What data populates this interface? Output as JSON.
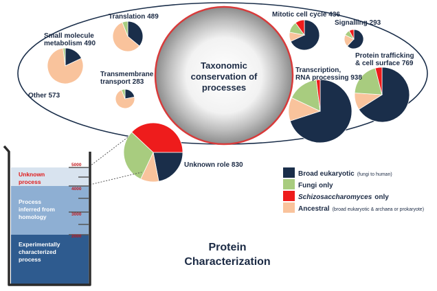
{
  "center": {
    "title_line1": "Taxonomic",
    "title_line2": "conservation of",
    "title_line3": "processes"
  },
  "categories": [
    {
      "key": "broad",
      "name": "Broad eukaryotic",
      "note": "(fungi to human)",
      "color": "#1a2e4a"
    },
    {
      "key": "fungi",
      "name": "Fungi only",
      "note": "",
      "color": "#a8cc7f"
    },
    {
      "key": "schizo",
      "name": "Schizosaccharomyces",
      "name_suffix": "only",
      "note": "",
      "color": "#ee1c1c"
    },
    {
      "key": "ancestral",
      "name": "Ancestral",
      "note": "(broad eukaryotic & archaea or prokaryote)",
      "color": "#f9c39c"
    }
  ],
  "processes": [
    {
      "id": "small-molecule-metabolism",
      "label_lines": [
        "Small molecule",
        "metabolism 490"
      ],
      "values": {
        "broad": 18,
        "fungi": 2,
        "schizo": 0,
        "ancestral": 80
      }
    },
    {
      "id": "translation",
      "label_lines": [
        "Translation 489"
      ],
      "values": {
        "broad": 36,
        "fungi": 6,
        "schizo": 0,
        "ancestral": 58
      }
    },
    {
      "id": "other",
      "label_lines": [
        "Other 573"
      ],
      "values": {}
    },
    {
      "id": "transmembrane-transport",
      "label_lines": [
        "Transmembrane",
        "transport 283"
      ],
      "values": {
        "broad": 22,
        "fungi": 6,
        "schizo": 0,
        "ancestral": 72
      }
    },
    {
      "id": "mitotic-cell-cycle",
      "label_lines": [
        "Mitotic cell cycle 436"
      ],
      "values": {
        "broad": 68,
        "fungi": 12,
        "schizo": 10,
        "ancestral": 10
      }
    },
    {
      "id": "signalling",
      "label_lines": [
        "Signalling 293"
      ],
      "values": {
        "broad": 62,
        "fungi": 10,
        "schizo": 8,
        "ancestral": 20
      }
    },
    {
      "id": "transcription-rna-processing",
      "label_lines": [
        "Transcription,",
        "RNA processing 938"
      ],
      "values": {
        "broad": 70,
        "fungi": 16,
        "schizo": 2,
        "ancestral": 12
      }
    },
    {
      "id": "protein-trafficking",
      "label_lines": [
        "Protein trafficking",
        "& cell surface  769"
      ],
      "values": {
        "broad": 66,
        "fungi": 20,
        "schizo": 4,
        "ancestral": 10
      }
    },
    {
      "id": "unknown-role",
      "label_lines": [
        "Unknown role 830"
      ],
      "values": {
        "broad": 22,
        "fungi": 30,
        "schizo": 38,
        "ancestral": 10
      }
    }
  ],
  "beaker": {
    "layers": [
      {
        "id": "unknown",
        "lines": [
          "Unknown",
          "process"
        ],
        "color": "#d8e3ef",
        "text_color": "#e01b1b"
      },
      {
        "id": "inferred",
        "lines": [
          "Process",
          "inferred from",
          "homology"
        ],
        "color": "#8eafd3",
        "text_color": "#ffffff"
      },
      {
        "id": "experimental",
        "lines": [
          "Experimentally",
          "characterized",
          "process"
        ],
        "color": "#2e5b8f",
        "text_color": "#ffffff"
      }
    ],
    "tick_labels": [
      "5000",
      "4000",
      "3000",
      "2000"
    ]
  },
  "caption": {
    "line1": "Protein",
    "line2": "Characterization"
  }
}
